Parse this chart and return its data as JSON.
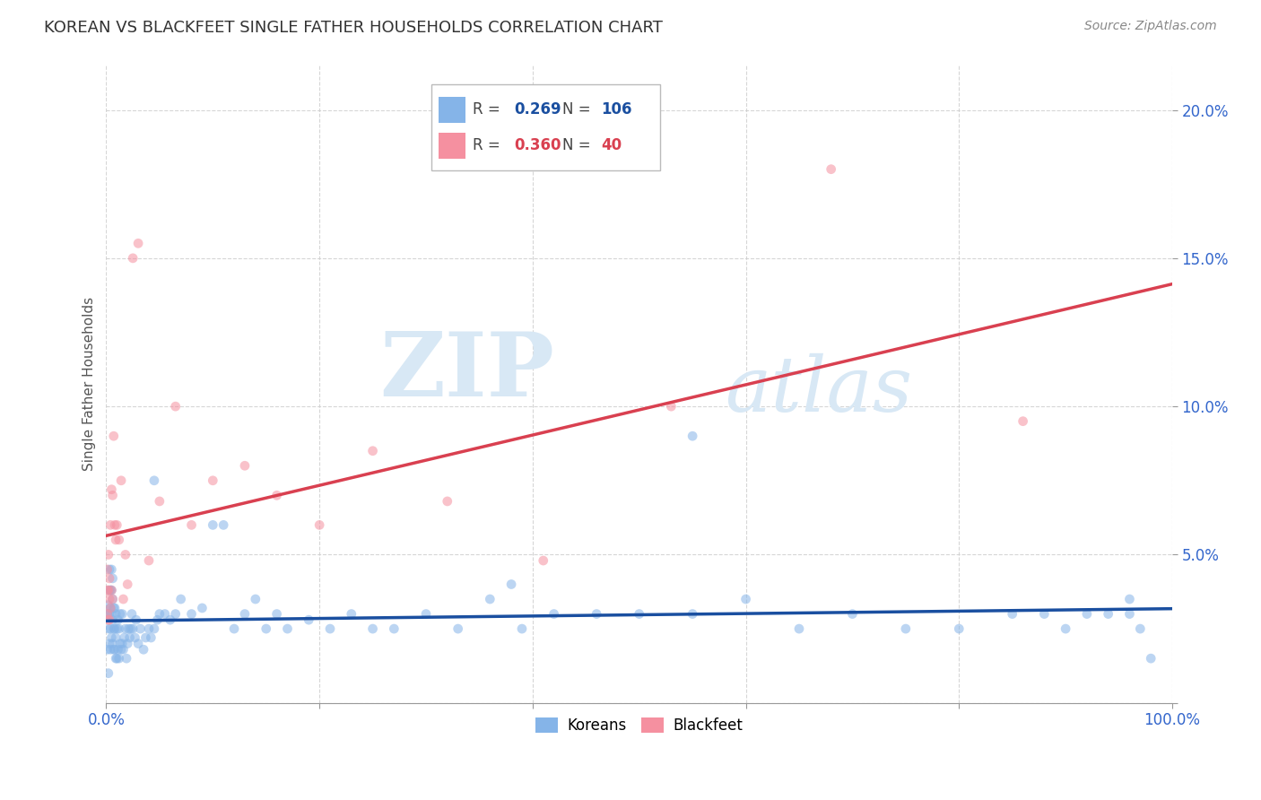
{
  "title": "KOREAN VS BLACKFEET SINGLE FATHER HOUSEHOLDS CORRELATION CHART",
  "source": "Source: ZipAtlas.com",
  "ylabel": "Single Father Households",
  "xlim": [
    0,
    1.0
  ],
  "ylim": [
    0,
    0.215
  ],
  "korean_color": "#85b4e8",
  "blackfeet_color": "#f590a0",
  "korean_line_color": "#1a4fa0",
  "blackfeet_line_color": "#d94050",
  "korean_R": 0.269,
  "korean_N": 106,
  "blackfeet_R": 0.36,
  "blackfeet_N": 40,
  "background_color": "#ffffff",
  "grid_color": "#cccccc",
  "title_color": "#333333",
  "axis_label_color": "#555555",
  "tick_label_color": "#3366cc",
  "watermark_color": "#d8e8f5",
  "koreans_x": [
    0.001,
    0.001,
    0.002,
    0.002,
    0.002,
    0.003,
    0.003,
    0.003,
    0.003,
    0.004,
    0.004,
    0.004,
    0.004,
    0.005,
    0.005,
    0.005,
    0.005,
    0.006,
    0.006,
    0.006,
    0.006,
    0.007,
    0.007,
    0.007,
    0.008,
    0.008,
    0.008,
    0.009,
    0.009,
    0.009,
    0.01,
    0.01,
    0.011,
    0.011,
    0.012,
    0.012,
    0.013,
    0.013,
    0.014,
    0.015,
    0.015,
    0.016,
    0.017,
    0.018,
    0.019,
    0.02,
    0.021,
    0.022,
    0.023,
    0.024,
    0.025,
    0.027,
    0.028,
    0.03,
    0.032,
    0.035,
    0.037,
    0.04,
    0.042,
    0.045,
    0.048,
    0.05,
    0.055,
    0.06,
    0.065,
    0.07,
    0.08,
    0.09,
    0.1,
    0.11,
    0.12,
    0.13,
    0.14,
    0.15,
    0.16,
    0.17,
    0.19,
    0.21,
    0.23,
    0.25,
    0.27,
    0.3,
    0.33,
    0.36,
    0.39,
    0.42,
    0.46,
    0.5,
    0.55,
    0.6,
    0.65,
    0.7,
    0.75,
    0.8,
    0.85,
    0.88,
    0.9,
    0.92,
    0.94,
    0.96,
    0.97,
    0.98,
    0.045,
    0.38,
    0.55,
    0.96
  ],
  "koreans_y": [
    0.03,
    0.018,
    0.01,
    0.025,
    0.033,
    0.02,
    0.03,
    0.038,
    0.045,
    0.025,
    0.032,
    0.038,
    0.018,
    0.022,
    0.03,
    0.038,
    0.045,
    0.02,
    0.028,
    0.035,
    0.042,
    0.018,
    0.025,
    0.032,
    0.018,
    0.025,
    0.032,
    0.015,
    0.022,
    0.03,
    0.015,
    0.025,
    0.018,
    0.028,
    0.015,
    0.025,
    0.02,
    0.03,
    0.018,
    0.02,
    0.03,
    0.018,
    0.022,
    0.025,
    0.015,
    0.02,
    0.025,
    0.022,
    0.025,
    0.03,
    0.025,
    0.022,
    0.028,
    0.02,
    0.025,
    0.018,
    0.022,
    0.025,
    0.022,
    0.025,
    0.028,
    0.03,
    0.03,
    0.028,
    0.03,
    0.035,
    0.03,
    0.032,
    0.06,
    0.06,
    0.025,
    0.03,
    0.035,
    0.025,
    0.03,
    0.025,
    0.028,
    0.025,
    0.03,
    0.025,
    0.025,
    0.03,
    0.025,
    0.035,
    0.025,
    0.03,
    0.03,
    0.03,
    0.03,
    0.035,
    0.025,
    0.03,
    0.025,
    0.025,
    0.03,
    0.03,
    0.025,
    0.03,
    0.03,
    0.03,
    0.025,
    0.015,
    0.075,
    0.04,
    0.09,
    0.035
  ],
  "blackfeet_x": [
    0.001,
    0.001,
    0.001,
    0.002,
    0.002,
    0.002,
    0.003,
    0.003,
    0.003,
    0.004,
    0.004,
    0.005,
    0.005,
    0.006,
    0.006,
    0.007,
    0.008,
    0.009,
    0.01,
    0.012,
    0.014,
    0.016,
    0.018,
    0.02,
    0.025,
    0.03,
    0.04,
    0.05,
    0.065,
    0.08,
    0.1,
    0.13,
    0.16,
    0.2,
    0.25,
    0.32,
    0.41,
    0.53,
    0.68,
    0.86
  ],
  "blackfeet_y": [
    0.03,
    0.038,
    0.045,
    0.028,
    0.038,
    0.05,
    0.028,
    0.035,
    0.042,
    0.032,
    0.06,
    0.038,
    0.072,
    0.035,
    0.07,
    0.09,
    0.06,
    0.055,
    0.06,
    0.055,
    0.075,
    0.035,
    0.05,
    0.04,
    0.15,
    0.155,
    0.048,
    0.068,
    0.1,
    0.06,
    0.075,
    0.08,
    0.07,
    0.06,
    0.085,
    0.068,
    0.048,
    0.1,
    0.18,
    0.095
  ]
}
